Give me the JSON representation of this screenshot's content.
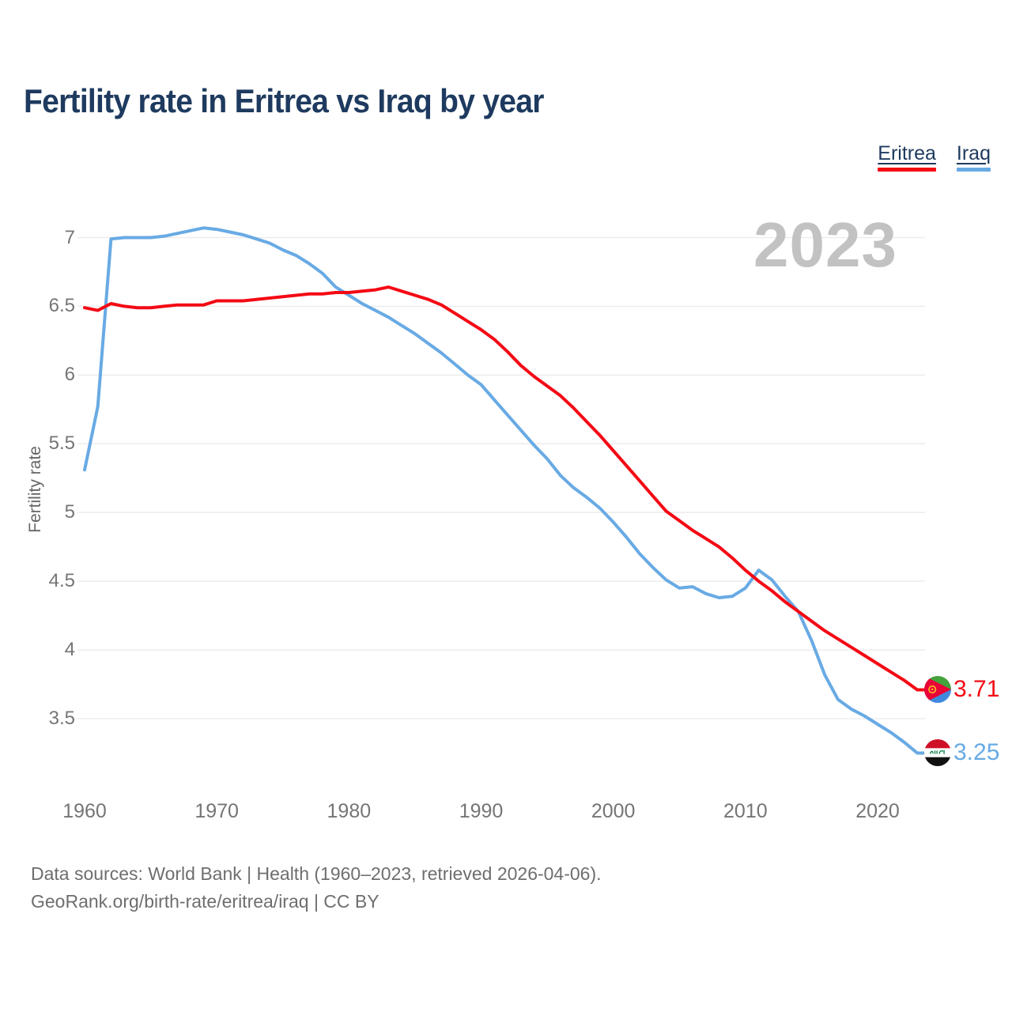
{
  "header": {
    "title": "Fertility rate in Eritrea vs Iraq by year"
  },
  "legend": {
    "items": [
      {
        "label": "Eritrea",
        "color": "#f40a14"
      },
      {
        "label": "Iraq",
        "color": "#68aae4"
      }
    ]
  },
  "watermark": "2023",
  "end_labels": {
    "eritrea": "3.71",
    "iraq": "3.25"
  },
  "footer": {
    "line1": "Data sources: World Bank | Health (1960–2023, retrieved 2026-04-06).",
    "line2": "GeoRank.org/birth-rate/eritrea/iraq | CC BY"
  },
  "chart_data": {
    "type": "line",
    "title": "Fertility rate in Eritrea vs Iraq by year",
    "xlabel": "",
    "ylabel": "Fertility rate",
    "x": [
      1960,
      1961,
      1962,
      1963,
      1964,
      1965,
      1966,
      1967,
      1968,
      1969,
      1970,
      1971,
      1972,
      1973,
      1974,
      1975,
      1976,
      1977,
      1978,
      1979,
      1980,
      1981,
      1982,
      1983,
      1984,
      1985,
      1986,
      1987,
      1988,
      1989,
      1990,
      1991,
      1992,
      1993,
      1994,
      1995,
      1996,
      1997,
      1998,
      1999,
      2000,
      2001,
      2002,
      2003,
      2004,
      2005,
      2006,
      2007,
      2008,
      2009,
      2010,
      2011,
      2012,
      2013,
      2014,
      2015,
      2016,
      2017,
      2018,
      2019,
      2020,
      2021,
      2022,
      2023
    ],
    "series": [
      {
        "name": "Eritrea",
        "color": "#f40a14",
        "end_label": "3.71",
        "values": [
          6.49,
          6.47,
          6.52,
          6.5,
          6.49,
          6.49,
          6.5,
          6.51,
          6.51,
          6.51,
          6.54,
          6.54,
          6.54,
          6.55,
          6.56,
          6.57,
          6.58,
          6.59,
          6.59,
          6.6,
          6.6,
          6.61,
          6.62,
          6.64,
          6.61,
          6.58,
          6.55,
          6.51,
          6.45,
          6.39,
          6.33,
          6.26,
          6.17,
          6.07,
          5.99,
          5.92,
          5.85,
          5.76,
          5.66,
          5.56,
          5.45,
          5.34,
          5.23,
          5.12,
          5.01,
          4.94,
          4.87,
          4.81,
          4.75,
          4.67,
          4.58,
          4.5,
          4.43,
          4.35,
          4.28,
          4.21,
          4.14,
          4.08,
          4.02,
          3.96,
          3.9,
          3.84,
          3.78,
          3.71
        ]
      },
      {
        "name": "Iraq",
        "color": "#68aae4",
        "end_label": "3.25",
        "values": [
          5.31,
          5.77,
          6.99,
          7.0,
          7.0,
          7.0,
          7.01,
          7.03,
          7.05,
          7.07,
          7.06,
          7.04,
          7.02,
          6.99,
          6.96,
          6.91,
          6.87,
          6.81,
          6.74,
          6.64,
          6.58,
          6.52,
          6.47,
          6.42,
          6.36,
          6.3,
          6.23,
          6.16,
          6.08,
          6.0,
          5.93,
          5.82,
          5.71,
          5.6,
          5.49,
          5.39,
          5.27,
          5.18,
          5.11,
          5.03,
          4.93,
          4.82,
          4.7,
          4.6,
          4.51,
          4.45,
          4.46,
          4.41,
          4.38,
          4.39,
          4.45,
          4.58,
          4.51,
          4.39,
          4.28,
          4.07,
          3.82,
          3.64,
          3.57,
          3.52,
          3.46,
          3.4,
          3.33,
          3.25
        ]
      }
    ],
    "yticks": [
      3.5,
      4,
      4.5,
      5,
      5.5,
      6,
      6.5,
      7
    ],
    "ytick_labels": [
      "3.5",
      "4",
      "4.5",
      "5",
      "5.5",
      "6",
      "6.5",
      "7"
    ],
    "xticks": [
      1960,
      1970,
      1980,
      1990,
      2000,
      2010,
      2020
    ],
    "ylim": [
      3.1,
      7.2
    ],
    "xlim": [
      1960,
      2023
    ],
    "grid": "horizontal",
    "legend_position": "top-right"
  }
}
